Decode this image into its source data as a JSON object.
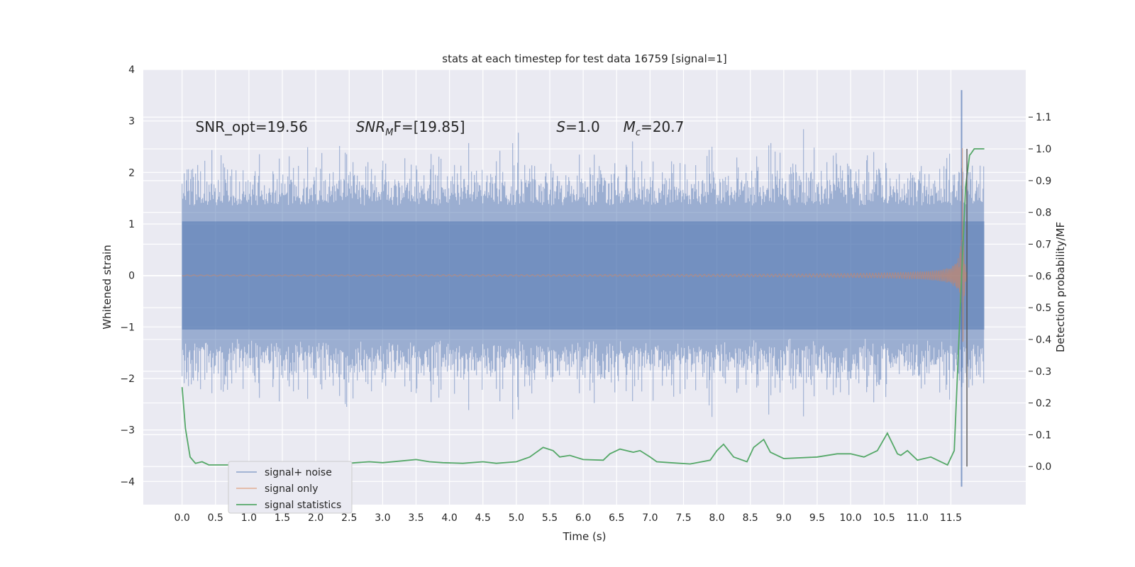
{
  "chart_data": {
    "type": "line",
    "title": "stats at each timestep for test data 16759 [signal=1]",
    "xlabel": "Time (s)",
    "ylabel": "Whitened strain",
    "ylabel_right": "Detection probability/MF",
    "xlim": [
      -0.58,
      12.62
    ],
    "ylim": [
      -4.45,
      4.0
    ],
    "ylim_right": [
      -0.12,
      1.25
    ],
    "x_ticks": [
      0.0,
      0.5,
      1.0,
      1.5,
      2.0,
      2.5,
      3.0,
      3.5,
      4.0,
      4.5,
      5.0,
      5.5,
      6.0,
      6.5,
      7.0,
      7.5,
      8.0,
      8.5,
      9.0,
      9.5,
      10.0,
      10.5,
      11.0,
      11.5
    ],
    "x_tick_labels": [
      "0.0",
      "0.5",
      "1.0",
      "1.5",
      "2.0",
      "2.5",
      "3.0",
      "3.5",
      "4.0",
      "4.5",
      "5.0",
      "5.5",
      "6.0",
      "6.5",
      "7.0",
      "7.5",
      "8.0",
      "8.5",
      "9.0",
      "9.5",
      "10.0",
      "10.5",
      "11.0",
      "11.5"
    ],
    "y_ticks": [
      -4,
      -3,
      -2,
      -1,
      0,
      1,
      2,
      3,
      4
    ],
    "y_tick_labels": [
      "−4",
      "−3",
      "−2",
      "−1",
      "0",
      "1",
      "2",
      "3",
      "4"
    ],
    "y_ticks_right": [
      0.0,
      0.1,
      0.2,
      0.3,
      0.4,
      0.5,
      0.6,
      0.7,
      0.8,
      0.9,
      1.0,
      1.1
    ],
    "y_tick_labels_right": [
      "0.0",
      "0.1",
      "0.2",
      "0.3",
      "0.4",
      "0.5",
      "0.6",
      "0.7",
      "0.8",
      "0.9",
      "1.0",
      "1.1"
    ],
    "legend_location": "lower-left",
    "series": [
      {
        "name": "signal+ noise",
        "color": "#4c72b0",
        "axis": "left",
        "kind": "noise-envelope",
        "x_range": [
          0.0,
          12.0
        ],
        "typical_amplitude": 1.6,
        "peak_max": 3.6,
        "peak_min": -4.1
      },
      {
        "name": "signal only",
        "color": "#dd8452",
        "axis": "left",
        "kind": "chirp",
        "x_range": [
          0.0,
          11.75
        ],
        "merger_time": 11.67,
        "peak_amplitude": 3.4
      },
      {
        "name": "signal statistics",
        "color": "#55a868",
        "axis": "right",
        "x": [
          0.0,
          0.05,
          0.12,
          0.2,
          0.3,
          0.4,
          0.5,
          0.6,
          0.8,
          1.0,
          1.3,
          1.5,
          1.7,
          2.0,
          2.3,
          2.5,
          2.6,
          2.8,
          3.0,
          3.3,
          3.5,
          3.7,
          3.9,
          4.2,
          4.5,
          4.7,
          5.0,
          5.2,
          5.4,
          5.55,
          5.65,
          5.8,
          6.0,
          6.3,
          6.4,
          6.55,
          6.75,
          6.85,
          7.0,
          7.1,
          7.3,
          7.6,
          7.9,
          8.0,
          8.1,
          8.25,
          8.45,
          8.55,
          8.7,
          8.8,
          9.0,
          9.5,
          9.8,
          10.0,
          10.2,
          10.4,
          10.55,
          10.7,
          10.75,
          10.85,
          11.0,
          11.2,
          11.45,
          11.55,
          11.65,
          11.72,
          11.78,
          11.8,
          11.85,
          11.9,
          11.95,
          12.0
        ],
        "values": [
          0.25,
          0.12,
          0.03,
          0.01,
          0.015,
          0.005,
          0.005,
          0.005,
          0.005,
          0.005,
          0.005,
          0.01,
          0.005,
          0.005,
          0.008,
          0.01,
          0.012,
          0.015,
          0.012,
          0.018,
          0.022,
          0.015,
          0.012,
          0.01,
          0.015,
          0.01,
          0.015,
          0.03,
          0.06,
          0.05,
          0.03,
          0.035,
          0.022,
          0.02,
          0.04,
          0.055,
          0.045,
          0.05,
          0.03,
          0.015,
          0.012,
          0.008,
          0.02,
          0.05,
          0.07,
          0.03,
          0.015,
          0.06,
          0.085,
          0.045,
          0.025,
          0.03,
          0.04,
          0.04,
          0.03,
          0.05,
          0.105,
          0.04,
          0.035,
          0.05,
          0.02,
          0.03,
          0.005,
          0.05,
          0.55,
          0.88,
          0.98,
          0.985,
          1.0,
          1.0,
          1.0,
          1.0
        ]
      }
    ],
    "annotations": [
      {
        "text": "SNR_opt=19.56",
        "x": 0.2,
        "y": 2.9
      },
      {
        "text": "SNR_MF=[19.85]",
        "display_main": "SNR",
        "display_sub": "M",
        "display_rest": "F=[19.85]",
        "x": 2.6,
        "y": 2.9
      },
      {
        "text": "S=1.0",
        "display_main": "S",
        "display_rest": "=1.0",
        "x": 5.6,
        "y": 2.9
      },
      {
        "text": "M_c=20.7",
        "display_main": "M",
        "display_sub": "c",
        "display_rest": "=20.7",
        "x": 6.6,
        "y": 2.9
      }
    ]
  }
}
